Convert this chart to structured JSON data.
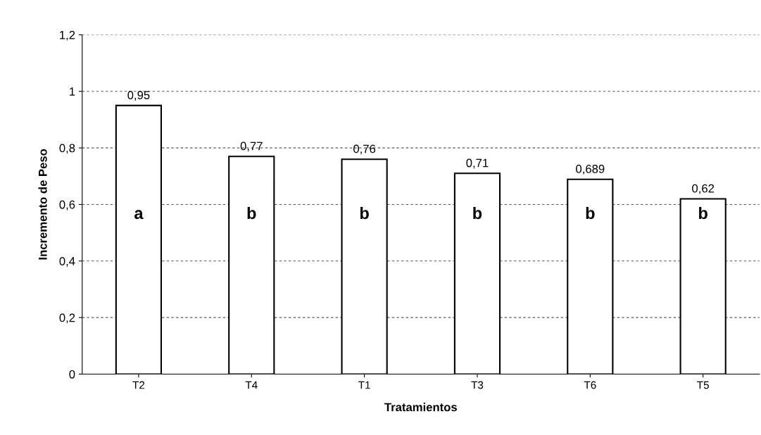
{
  "chart_data": {
    "type": "bar",
    "xlabel": "Tratamientos",
    "ylabel": "Incremento de Peso",
    "categories": [
      "T2",
      "T4",
      "T1",
      "T3",
      "T6",
      "T5"
    ],
    "values": [
      0.95,
      0.77,
      0.76,
      0.71,
      0.689,
      0.62
    ],
    "color": "#ffffff",
    "value_labels": [
      "0,95",
      "0,77",
      "0,76",
      "0,71",
      "0,689",
      "0,62"
    ],
    "ylim": [
      0,
      1.2
    ],
    "yticks": [
      {
        "value": 0,
        "label": "0"
      },
      {
        "value": 0.2,
        "label": "0,2"
      },
      {
        "value": 0.4,
        "label": "0,4"
      },
      {
        "value": 0.6,
        "label": "0,6"
      },
      {
        "value": 0.8,
        "label": "0,8"
      },
      {
        "value": 1,
        "label": "1"
      },
      {
        "value": 1.2,
        "label": "1,2"
      }
    ],
    "grid": "y",
    "legend": false,
    "annotations": [
      "a",
      "b",
      "b",
      "b",
      "b",
      "b"
    ]
  }
}
